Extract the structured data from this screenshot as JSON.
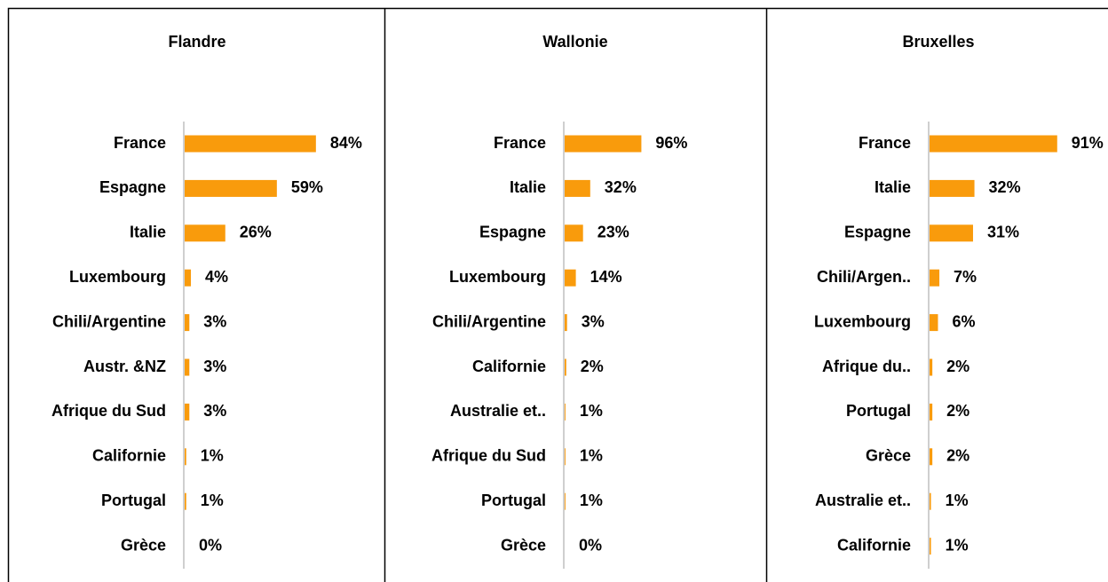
{
  "chart_data": [
    {
      "type": "bar",
      "title": "Flandre",
      "color": "#f99b0c",
      "categories": [
        "France",
        "Espagne",
        "Italie",
        "Luxembourg",
        "Chili/Argentine",
        "Austr. &NZ",
        "Afrique du Sud",
        "Californie",
        "Portugal",
        "Grèce"
      ],
      "values": [
        84,
        59,
        26,
        4,
        3,
        3,
        3,
        1,
        1,
        0
      ],
      "value_labels": [
        "84%",
        "59%",
        "26%",
        "4%",
        "3%",
        "3%",
        "3%",
        "1%",
        "1%",
        "0%"
      ]
    },
    {
      "type": "bar",
      "title": "Wallonie",
      "color": "#f99b0c",
      "categories": [
        "France",
        "Italie",
        "Espagne",
        "Luxembourg",
        "Chili/Argentine",
        "Californie",
        "Australie et..",
        "Afrique du Sud",
        "Portugal",
        "Grèce"
      ],
      "values": [
        96,
        32,
        23,
        14,
        3,
        2,
        1,
        1,
        1,
        0
      ],
      "value_labels": [
        "96%",
        "32%",
        "23%",
        "14%",
        "3%",
        "2%",
        "1%",
        "1%",
        "1%",
        "0%"
      ]
    },
    {
      "type": "bar",
      "title": "Bruxelles",
      "color": "#f99b0c",
      "categories": [
        "France",
        "Italie",
        "Espagne",
        "Chili/Argen..",
        "Luxembourg",
        "Afrique du..",
        "Portugal",
        "Grèce",
        "Australie et..",
        "Californie"
      ],
      "values": [
        91,
        32,
        31,
        7,
        6,
        2,
        2,
        2,
        1,
        1
      ],
      "value_labels": [
        "91%",
        "32%",
        "31%",
        "7%",
        "6%",
        "2%",
        "2%",
        "2%",
        "1%",
        "1%"
      ]
    }
  ]
}
